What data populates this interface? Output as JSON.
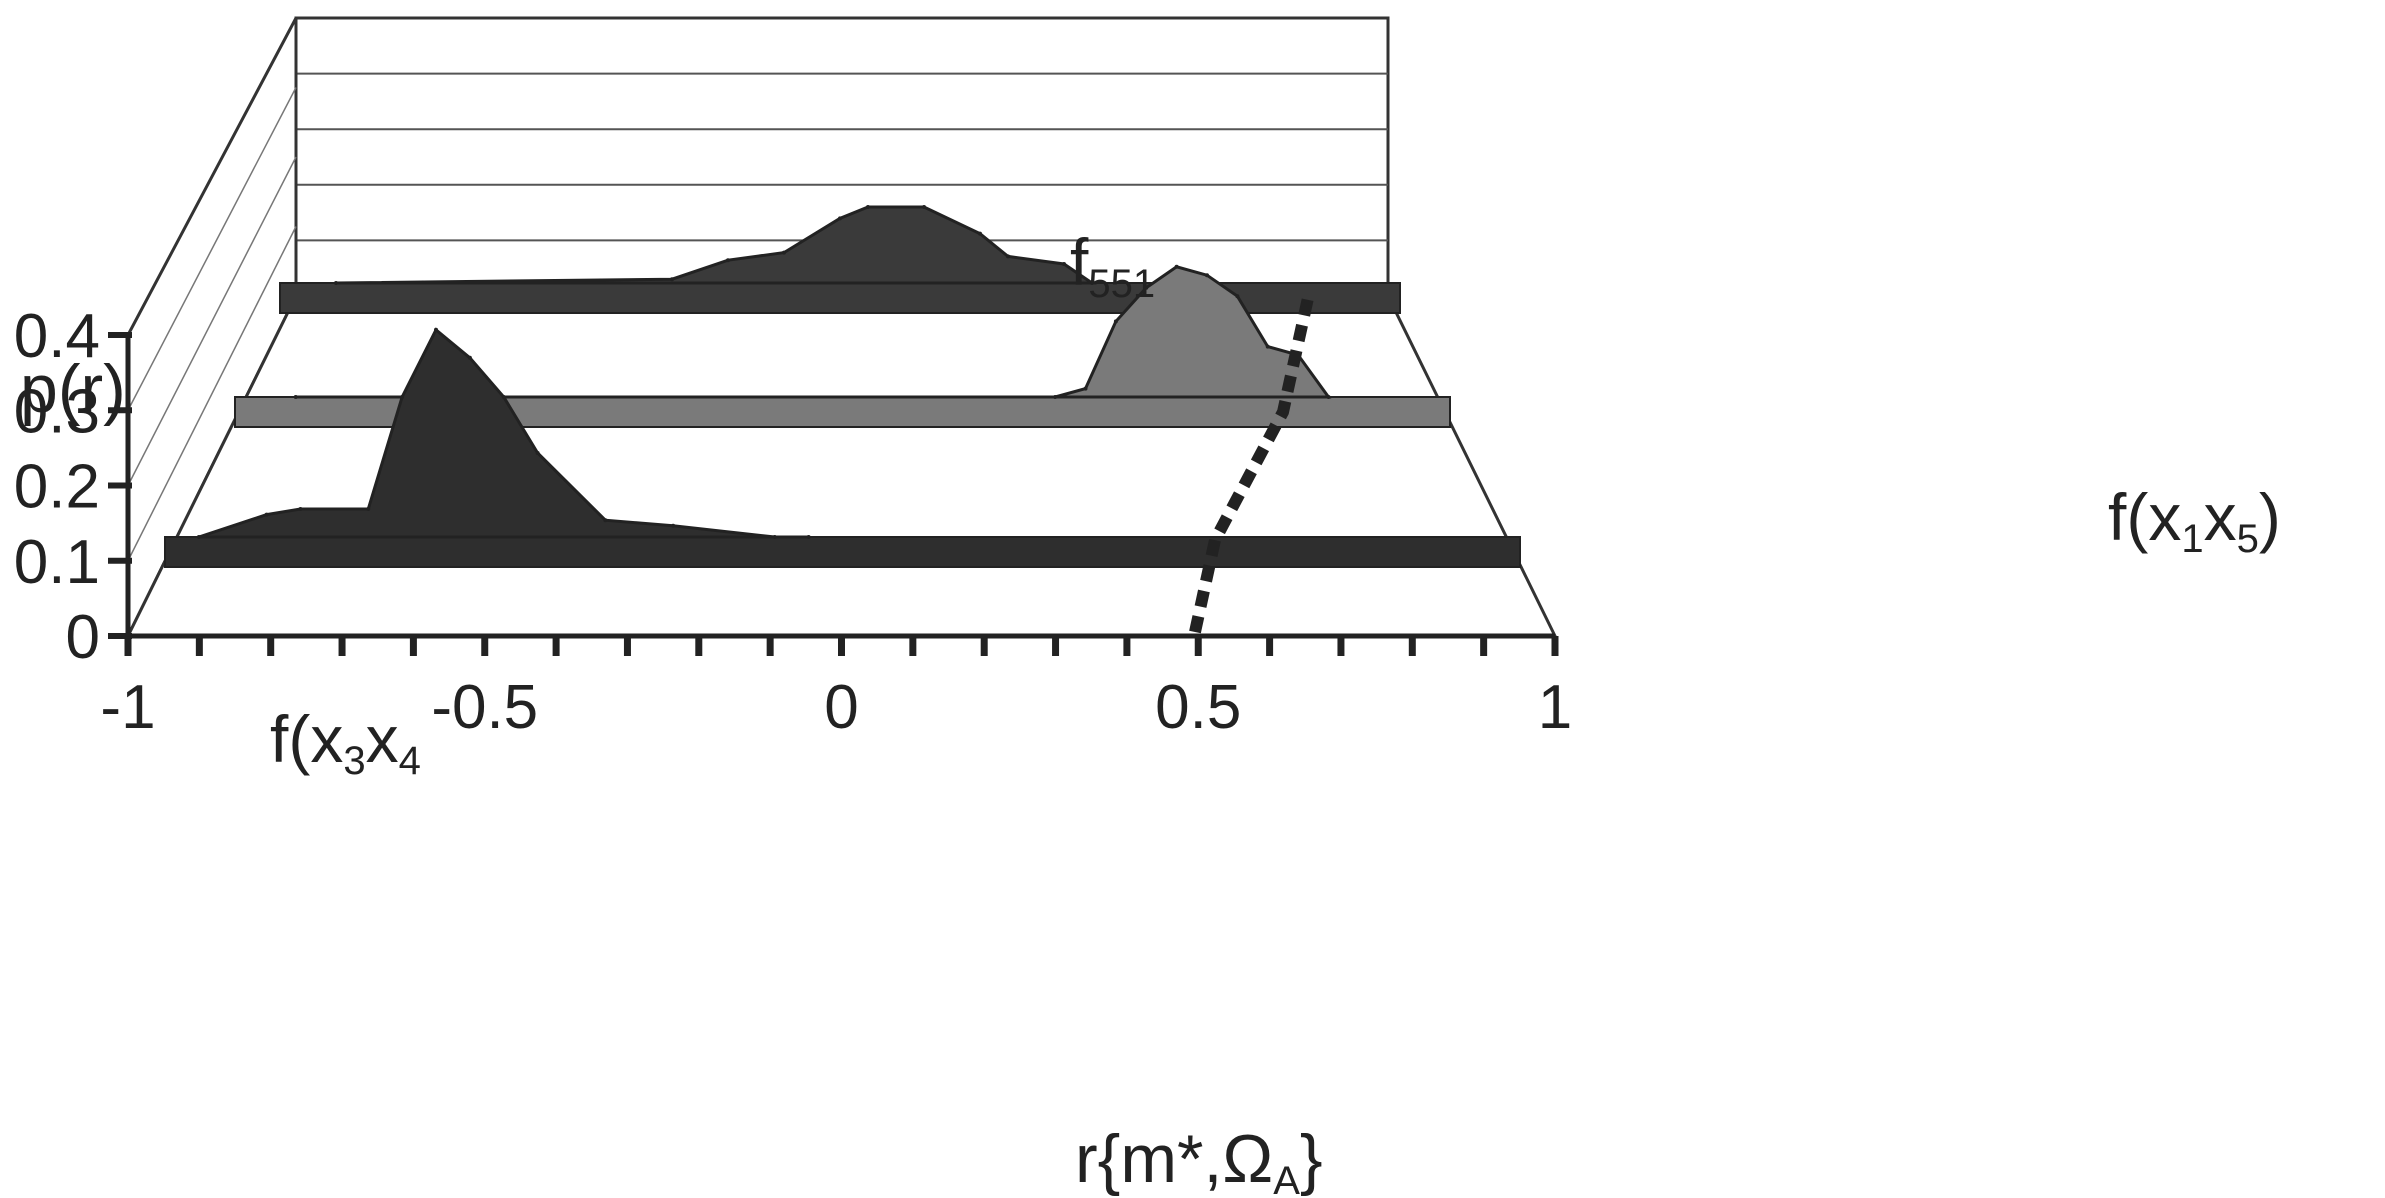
{
  "chart_data": {
    "type": "area",
    "style": "3d-ribbon",
    "xlabel": "r{m*,Ω",
    "xlabel_sub": "A",
    "xlabel_close": "}",
    "ylabel": "p(r)",
    "xlim": [
      -1,
      1
    ],
    "ylim": [
      0,
      0.4
    ],
    "x_ticks": [
      -1,
      -0.5,
      0,
      0.5,
      1
    ],
    "x_tick_labels": [
      "-1",
      "-0.5",
      "0",
      "0.5",
      "1"
    ],
    "y_ticks": [
      0,
      0.1,
      0.2,
      0.3,
      0.4
    ],
    "y_tick_labels": [
      "0",
      "0.1",
      "0.2",
      "0.3",
      "0.4"
    ],
    "grid": true,
    "series": [
      {
        "name_base": "f",
        "name_sub": "551",
        "color": "#3a3a3a",
        "x": [
          -0.9,
          -0.3,
          -0.2,
          -0.1,
          0.0,
          0.05,
          0.15,
          0.25,
          0.3,
          0.4,
          0.45
        ],
        "values": [
          0.0,
          0.01,
          0.06,
          0.08,
          0.17,
          0.2,
          0.2,
          0.13,
          0.07,
          0.05,
          0.0
        ]
      },
      {
        "name_base": "f(x",
        "name_sub": "1",
        "name_mid": "x",
        "name_sub2": "5",
        "name_close": ")",
        "color": "#7a7a7a",
        "x": [
          -0.9,
          0.35,
          0.4,
          0.45,
          0.5,
          0.55,
          0.6,
          0.65,
          0.7,
          0.75,
          0.8
        ],
        "values": [
          0.0,
          0.0,
          0.02,
          0.18,
          0.26,
          0.31,
          0.29,
          0.24,
          0.12,
          0.1,
          0.0
        ]
      },
      {
        "name_base": "f(x",
        "name_sub": "3",
        "name_mid": "x",
        "name_sub2": "4",
        "name_close": "",
        "color": "#2e2e2e",
        "x": [
          -0.95,
          -0.85,
          -0.8,
          -0.7,
          -0.65,
          -0.6,
          -0.55,
          -0.5,
          -0.45,
          -0.35,
          -0.25,
          -0.1,
          -0.05
        ],
        "values": [
          0.0,
          0.04,
          0.05,
          0.05,
          0.25,
          0.37,
          0.32,
          0.25,
          0.15,
          0.03,
          0.02,
          0.0,
          0.0
        ]
      }
    ]
  }
}
